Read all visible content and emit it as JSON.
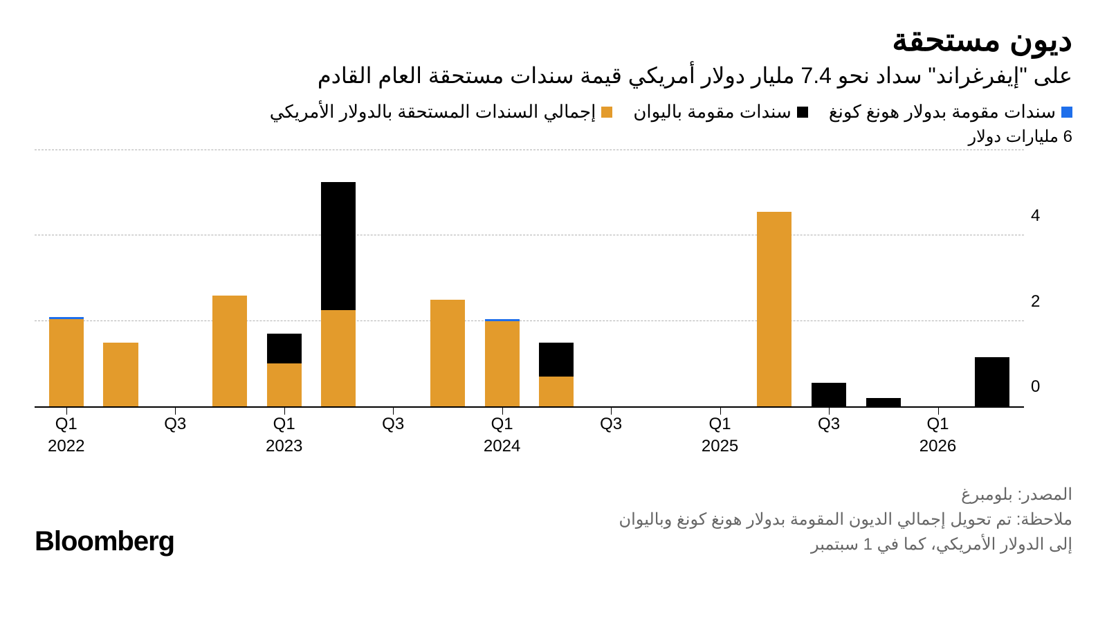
{
  "title": "ديون مستحقة",
  "subtitle": "على \"إيفرغراند\" سداد نحو 7.4 مليار دولار أمريكي قيمة سندات مستحقة العام القادم",
  "legend": [
    {
      "label": "سندات مقومة بدولار هونغ كونغ",
      "color": "#1f6feb"
    },
    {
      "label": "سندات مقومة باليوان",
      "color": "#000000"
    },
    {
      "label": "إجمالي السندات المستحقة بالدولار الأمريكي",
      "color": "#e39b2c"
    }
  ],
  "chart": {
    "type": "stacked-bar",
    "y_top_label": "6 مليارات دولار",
    "ylim": [
      0,
      6
    ],
    "y_ticks": [
      0,
      2,
      4
    ],
    "y_grid": [
      2,
      4,
      6
    ],
    "bar_width_pct": 3.5,
    "bar_gap_pct": 0.6,
    "colors": {
      "usd": "#e39b2c",
      "yuan": "#000000",
      "hkd": "#1f6feb"
    },
    "x_ticks": [
      {
        "pos": 0,
        "label": "Q1",
        "year": "2022"
      },
      {
        "pos": 2,
        "label": "Q3"
      },
      {
        "pos": 4,
        "label": "Q1",
        "year": "2023"
      },
      {
        "pos": 6,
        "label": "Q3"
      },
      {
        "pos": 8,
        "label": "Q1",
        "year": "2024"
      },
      {
        "pos": 10,
        "label": "Q3"
      },
      {
        "pos": 12,
        "label": "Q1",
        "year": "2025"
      },
      {
        "pos": 14,
        "label": "Q3"
      },
      {
        "pos": 16,
        "label": "Q1",
        "year": "2026"
      }
    ],
    "n_slots": 18,
    "left_pad_pct": 3.2,
    "right_pad_pct": 3.2,
    "bars": [
      {
        "slot": 0,
        "segments": [
          {
            "k": "usd",
            "v": 2.05
          },
          {
            "k": "hkd",
            "v": 0.05
          }
        ]
      },
      {
        "slot": 1,
        "segments": [
          {
            "k": "usd",
            "v": 1.5
          }
        ]
      },
      {
        "slot": 3,
        "segments": [
          {
            "k": "usd",
            "v": 2.6
          }
        ]
      },
      {
        "slot": 4,
        "segments": [
          {
            "k": "usd",
            "v": 1.0
          },
          {
            "k": "yuan",
            "v": 0.7
          }
        ]
      },
      {
        "slot": 5,
        "segments": [
          {
            "k": "usd",
            "v": 2.25
          },
          {
            "k": "yuan",
            "v": 3.0
          }
        ]
      },
      {
        "slot": 7,
        "segments": [
          {
            "k": "usd",
            "v": 2.5
          }
        ]
      },
      {
        "slot": 8,
        "segments": [
          {
            "k": "usd",
            "v": 2.0
          },
          {
            "k": "hkd",
            "v": 0.05
          }
        ]
      },
      {
        "slot": 9,
        "segments": [
          {
            "k": "usd",
            "v": 0.7
          },
          {
            "k": "yuan",
            "v": 0.8
          }
        ]
      },
      {
        "slot": 13,
        "segments": [
          {
            "k": "usd",
            "v": 4.55
          }
        ]
      },
      {
        "slot": 14,
        "segments": [
          {
            "k": "yuan",
            "v": 0.55
          }
        ]
      },
      {
        "slot": 15,
        "segments": [
          {
            "k": "yuan",
            "v": 0.2
          }
        ]
      },
      {
        "slot": 17,
        "segments": [
          {
            "k": "yuan",
            "v": 1.15
          }
        ]
      }
    ]
  },
  "source": "المصدر: بلومبرغ",
  "note": "ملاحظة: تم تحويل إجمالي الديون المقومة بدولار هونغ كونغ وباليوان\nإلى الدولار الأمريكي، كما في 1 سبتمبر",
  "brand": "Bloomberg"
}
